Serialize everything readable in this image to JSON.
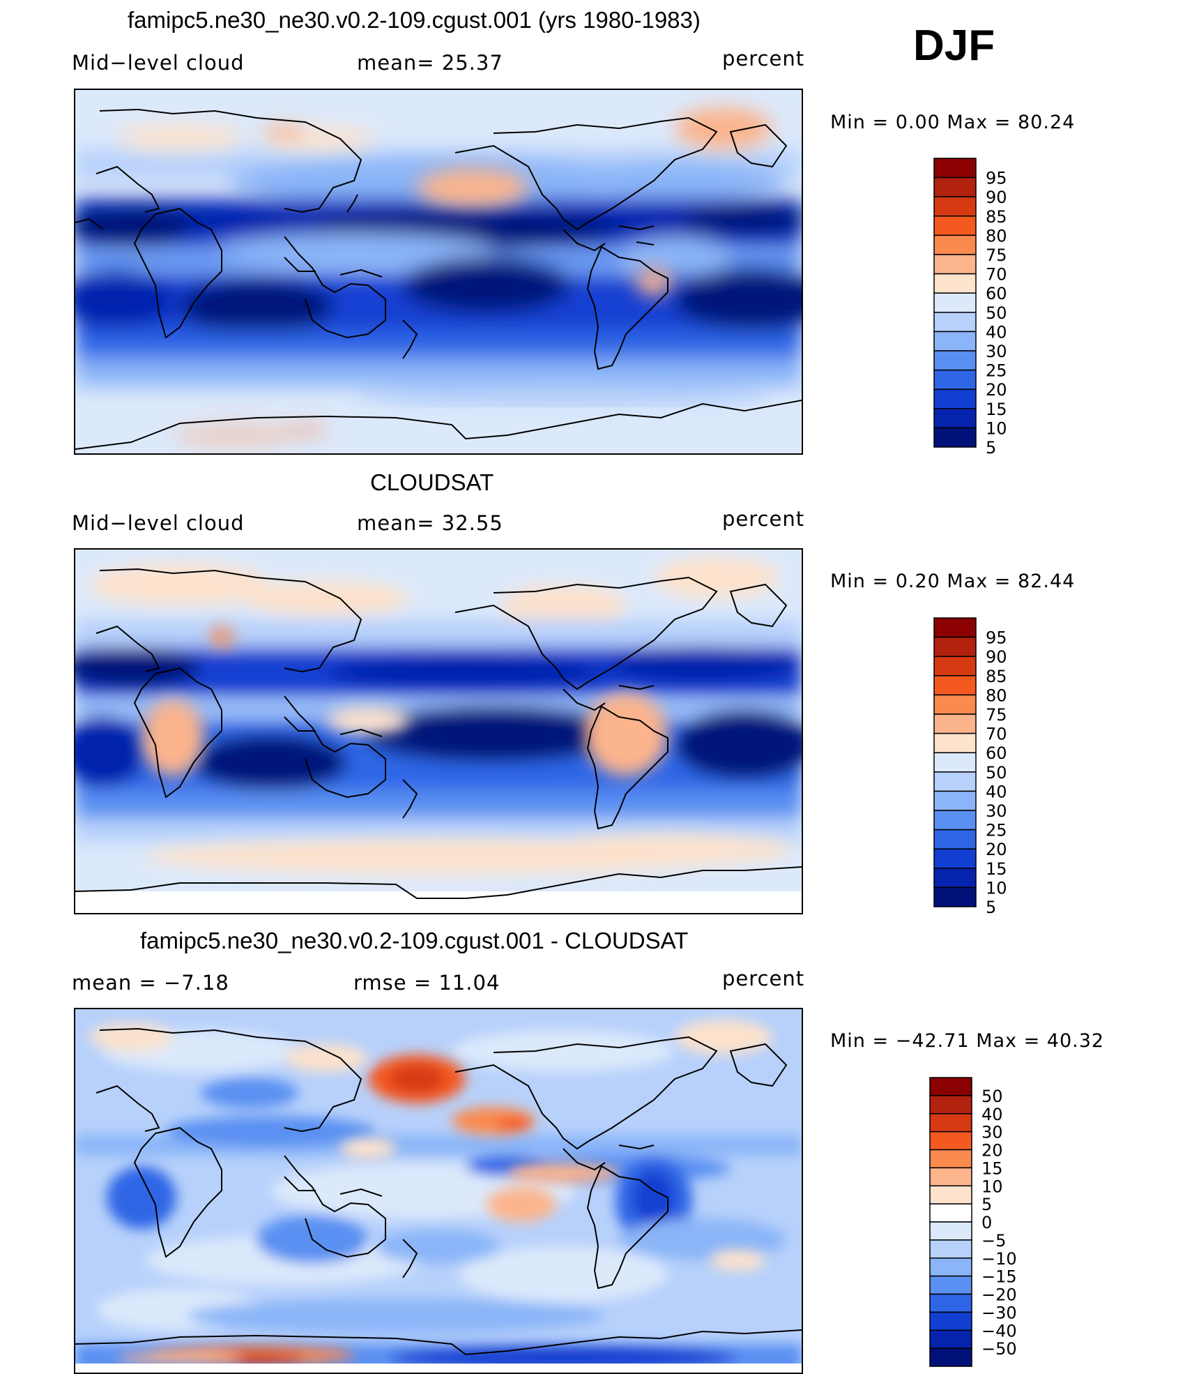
{
  "season": "DJF",
  "panels": [
    {
      "id": "model",
      "title": "famipc5.ne30_ne30.v0.2-109.cgust.001 (yrs 1980-1983)",
      "left_label": "Mid−level cloud",
      "center_label": "mean=   25.37",
      "units": "percent",
      "minmax": "Min  =     0.00  Max  =    80.24",
      "colorbar": {
        "ticks": [
          "95",
          "90",
          "85",
          "80",
          "75",
          "70",
          "60",
          "50",
          "40",
          "30",
          "25",
          "20",
          "15",
          "10",
          "5"
        ],
        "colors": [
          "#8b0000",
          "#b2220f",
          "#d63a12",
          "#f45a20",
          "#fb8a4f",
          "#fcb48c",
          "#fde2cc",
          "#dce9fb",
          "#b7d1fb",
          "#8bb5f8",
          "#5a90f2",
          "#2f66e6",
          "#123fd2",
          "#0623ad",
          "#00127a"
        ]
      }
    },
    {
      "id": "obs",
      "title": "CLOUDSAT",
      "left_label": "Mid−level cloud",
      "center_label": "mean=   32.55",
      "units": "percent",
      "minmax": "Min  =     0.20  Max  =    82.44",
      "colorbar": {
        "ticks": [
          "95",
          "90",
          "85",
          "80",
          "75",
          "70",
          "60",
          "50",
          "40",
          "30",
          "25",
          "20",
          "15",
          "10",
          "5"
        ],
        "colors": [
          "#8b0000",
          "#b2220f",
          "#d63a12",
          "#f45a20",
          "#fb8a4f",
          "#fcb48c",
          "#fde2cc",
          "#dce9fb",
          "#b7d1fb",
          "#8bb5f8",
          "#5a90f2",
          "#2f66e6",
          "#123fd2",
          "#0623ad",
          "#00127a"
        ]
      }
    },
    {
      "id": "diff",
      "title": "famipc5.ne30_ne30.v0.2-109.cgust.001 - CLOUDSAT",
      "left_label": "mean  =    −7.18",
      "center_label": "rmse  =    11.04",
      "units": "percent",
      "minmax": "Min  =  −42.71  Max  =    40.32",
      "colorbar": {
        "ticks": [
          "50",
          "40",
          "30",
          "20",
          "15",
          "10",
          "5",
          "0",
          "−5",
          "−10",
          "−15",
          "−20",
          "−30",
          "−40",
          "−50"
        ],
        "colors": [
          "#8b0000",
          "#b2220f",
          "#d63a12",
          "#f45a20",
          "#fb8a4f",
          "#fcb48c",
          "#fde2cc",
          "#ffffff",
          "#dce9fb",
          "#b7d1fb",
          "#8bb5f8",
          "#5a90f2",
          "#2f66e6",
          "#123fd2",
          "#0623ad",
          "#00127a"
        ]
      }
    }
  ]
}
